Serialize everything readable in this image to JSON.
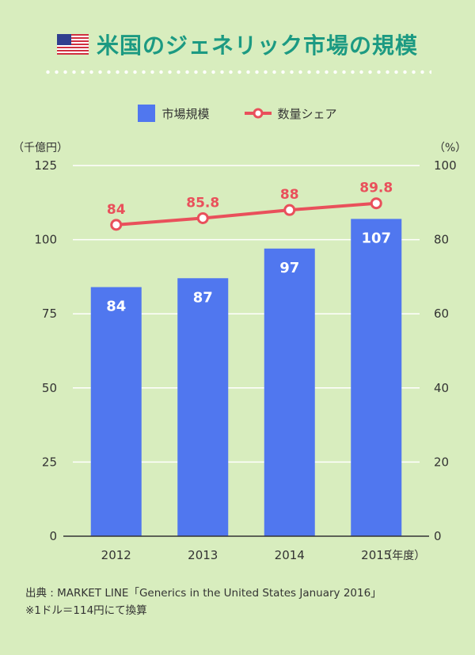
{
  "header": {
    "title": "米国のジェネリック市場の規模",
    "flag_icon": "us-flag-icon"
  },
  "legend": {
    "bar_label": "市場規模",
    "line_label": "数量シェア"
  },
  "colors": {
    "background": "#d8edbe",
    "title": "#1c9a82",
    "bar": "#5077ef",
    "line": "#e9505b",
    "bar_label": "#ffffff",
    "gridline": "#ffffff"
  },
  "chart_data": {
    "type": "bar",
    "title": "米国のジェネリック市場の規模",
    "categories": [
      "2012",
      "2013",
      "2014",
      "2015"
    ],
    "x_unit_label": "（年度）",
    "y_left_label": "（千億円）",
    "y_right_label": "（%）",
    "y_left_range": [
      0,
      125
    ],
    "y_left_ticks": [
      "0",
      "25",
      "50",
      "75",
      "100",
      "125"
    ],
    "y_right_range": [
      0,
      100
    ],
    "y_right_ticks": [
      "0",
      "20",
      "40",
      "60",
      "80",
      "100"
    ],
    "grid": true,
    "legend_position": "top-center",
    "series": [
      {
        "name": "市場規模",
        "type": "bar",
        "axis": "left",
        "values": [
          84,
          87,
          97,
          107
        ],
        "labels": [
          "84",
          "87",
          "97",
          "107"
        ]
      },
      {
        "name": "数量シェア",
        "type": "line",
        "axis": "right",
        "values": [
          84,
          85.8,
          88,
          89.8
        ],
        "labels": [
          "84",
          "85.8",
          "88",
          "89.8"
        ]
      }
    ]
  },
  "footer": {
    "source": "出典 : MARKET LINE「Generics in the United States January 2016」",
    "note": "※1ドル＝114円にて換算"
  }
}
